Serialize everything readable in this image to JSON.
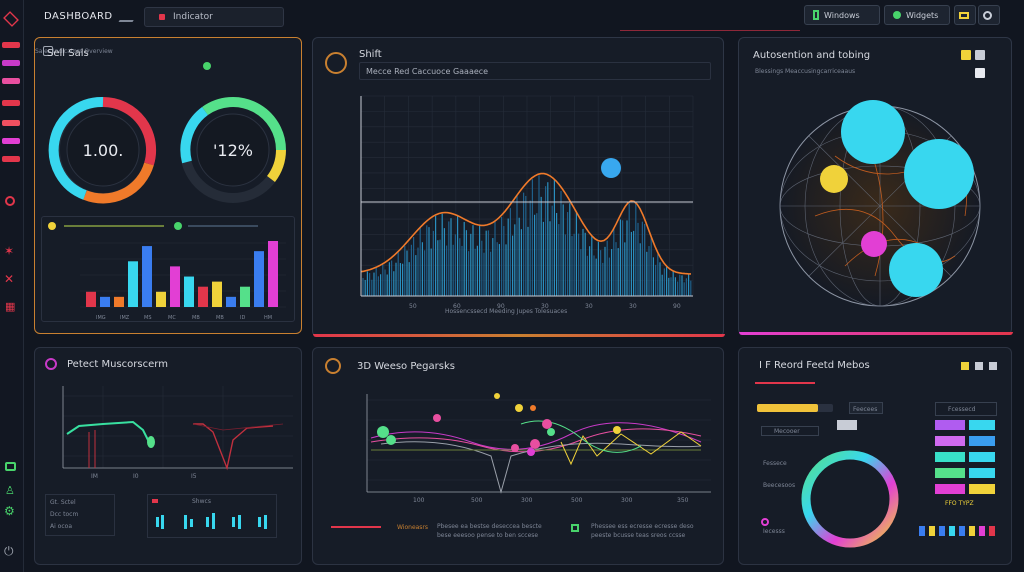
{
  "header": {
    "title": "DASHBOARD",
    "search_value": "Indicator",
    "btn_windows": "Windows",
    "btn_widgets": "Widgets"
  },
  "panel_sales": {
    "title": "Sell Sals",
    "subtitle": "Sales Indicators Overview",
    "gauge1_value": "1.00.",
    "gauge2_value": "'12%",
    "bar_values": [
      3,
      2,
      2,
      9,
      12,
      3,
      8,
      6,
      4,
      5,
      2,
      4,
      11,
      13
    ],
    "axis_x": [
      "IMG",
      "IMZ",
      "MS",
      "MC",
      "MB",
      "MB",
      "ID",
      "HM"
    ]
  },
  "panel_wave": {
    "title": "Shift",
    "subtitle": "Mecce Red Caccuoce Gaaaece",
    "axis_x": [
      "50",
      "60",
      "90",
      "30",
      "30",
      "30",
      "90"
    ],
    "footer": "Hossencssecd Meeding Jupes Tolesuaces"
  },
  "panel_sphere": {
    "title": "Autosention and tobing",
    "subtitle": "Blessings Meaccusingcarriceaaus"
  },
  "panel_pulse": {
    "title": "Petect Muscorscerm",
    "axis_x": [
      "IM",
      "I0",
      "I5"
    ],
    "legend": [
      "Gt. Sctel",
      "Dcc tocm",
      "Ai ocoa"
    ],
    "footer_label": "Shwcs"
  },
  "panel_3d": {
    "title": "3D Weeso Pegarsks",
    "axis_x": [
      "100",
      "500",
      "300",
      "500",
      "300",
      "350"
    ],
    "legend_left": "Wioneasrs",
    "note1": "Pbesee ea bestse deseccea bescte bese eeesoo pense to ben sccese",
    "note2": "Phessee ess ecresse ecresse deso peeste bcusse teas sreos ccsse"
  },
  "panel_controls": {
    "title": "I F Reord Feetd Mebos",
    "row1": "Mecooer",
    "row2": "Fessece",
    "row3": "Beecesoos",
    "row4": "Iecesss",
    "right_label": "Fcessecd",
    "left_label": "Feecees",
    "swatch_label": "FFO TYPZ"
  },
  "colors": {
    "cyan": "#38d7ef",
    "yellow": "#f0d23a",
    "magenta": "#e23fd4",
    "orange": "#f07a2a",
    "green": "#55e08a",
    "blue": "#3a7df0",
    "red": "#e2364b"
  }
}
